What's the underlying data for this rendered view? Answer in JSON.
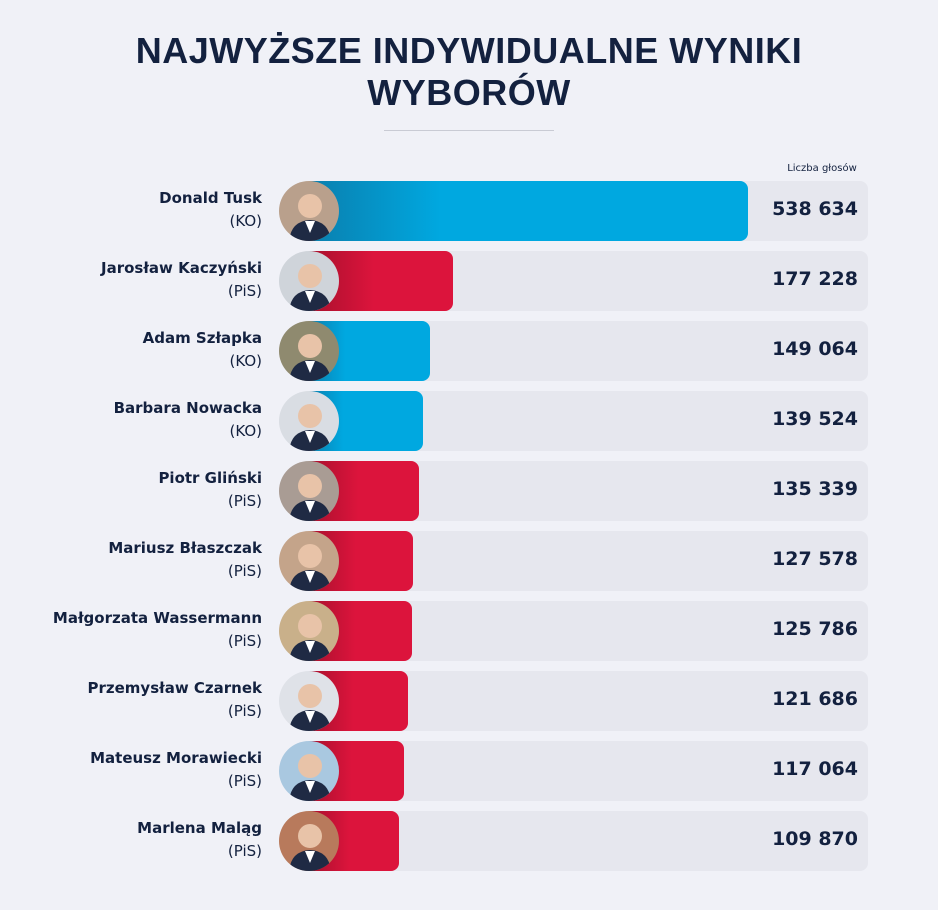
{
  "title_line1": "NAJWYŻSZE INDYWIDUALNE WYNIKI",
  "title_line2": "WYBORÓW",
  "chart_data": {
    "type": "bar",
    "orientation": "horizontal",
    "title": "NAJWYŻSZE INDYWIDUALNE WYNIKI WYBORÓW",
    "value_label": "Liczba głosów",
    "xlim": [
      0,
      538634
    ],
    "grid": false,
    "colors": {
      "KO": "#00a8e0",
      "PiS": "#dc143c"
    },
    "rows": [
      {
        "name": "Donald Tusk",
        "party": "(KO)",
        "value": 538634,
        "label": "538 634",
        "avatar_bg": "#b9a08c"
      },
      {
        "name": "Jarosław Kaczyński",
        "party": "(PiS)",
        "value": 177228,
        "label": "177 228",
        "avatar_bg": "#cfd4da"
      },
      {
        "name": "Adam Szłapka",
        "party": "(KO)",
        "value": 149064,
        "label": "149 064",
        "avatar_bg": "#8f8a6f"
      },
      {
        "name": "Barbara Nowacka",
        "party": "(KO)",
        "value": 139524,
        "label": "139 524",
        "avatar_bg": "#d9dde3"
      },
      {
        "name": "Piotr Gliński",
        "party": "(PiS)",
        "value": 135339,
        "label": "135 339",
        "avatar_bg": "#a99c94"
      },
      {
        "name": "Mariusz Błaszczak",
        "party": "(PiS)",
        "value": 127578,
        "label": "127 578",
        "avatar_bg": "#c4a48a"
      },
      {
        "name": "Małgorzata Wassermann",
        "party": "(PiS)",
        "value": 125786,
        "label": "125 786",
        "avatar_bg": "#c9b08a"
      },
      {
        "name": "Przemysław Czarnek",
        "party": "(PiS)",
        "value": 121686,
        "label": "121 686",
        "avatar_bg": "#dfe2e8"
      },
      {
        "name": "Mateusz Morawiecki",
        "party": "(PiS)",
        "value": 117064,
        "label": "117 064",
        "avatar_bg": "#a9c8e0"
      },
      {
        "name": "Marlena Maląg",
        "party": "(PiS)",
        "value": 109870,
        "label": "109 870",
        "avatar_bg": "#b87a5c"
      }
    ]
  }
}
